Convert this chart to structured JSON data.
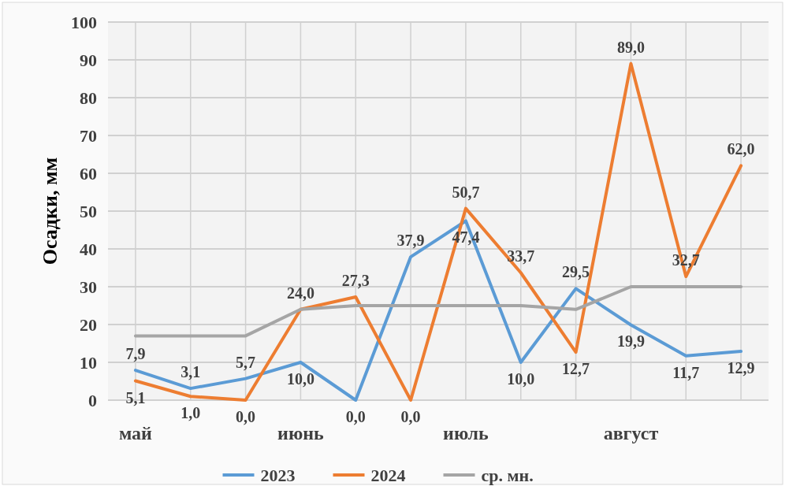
{
  "chart_data": {
    "type": "line",
    "ylabel": "Осадки, мм",
    "categories": [
      "май",
      null,
      null,
      "июнь",
      null,
      null,
      "июль",
      null,
      null,
      "август",
      null,
      null
    ],
    "ylim": [
      0,
      100
    ],
    "yticks": [
      0,
      10,
      20,
      30,
      40,
      50,
      60,
      70,
      80,
      90,
      100
    ],
    "grid": true,
    "legend": "bottom",
    "marker": "none",
    "line_style": "solid",
    "series": [
      {
        "name": "2023",
        "color": "#5b9bd5",
        "values": [
          7.9,
          3.1,
          5.7,
          10.0,
          0.0,
          37.9,
          47.4,
          10.0,
          29.5,
          19.9,
          11.7,
          12.9
        ],
        "value_labels": [
          "7,9",
          "3,1",
          "5,7",
          "10,0",
          "0,0",
          "37,9",
          "47,4",
          "10,0",
          "29,5",
          "19,9",
          "11,7",
          "12,9"
        ]
      },
      {
        "name": "2024",
        "color": "#ed7d31",
        "values": [
          5.1,
          1.0,
          0.0,
          24.0,
          27.3,
          0.0,
          50.7,
          33.7,
          12.7,
          89.0,
          32.7,
          62.0
        ],
        "value_labels": [
          "5,1",
          "1,0",
          "0,0",
          "24,0",
          "27,3",
          "0,0",
          "50,7",
          "33,7",
          "12,7",
          "89,0",
          "32,7",
          "62,0"
        ]
      },
      {
        "name": "ср. мн.",
        "color": "#a5a5a5",
        "values": [
          17,
          17,
          17,
          24,
          25,
          25,
          25,
          25,
          24,
          30,
          30,
          30
        ]
      }
    ]
  }
}
